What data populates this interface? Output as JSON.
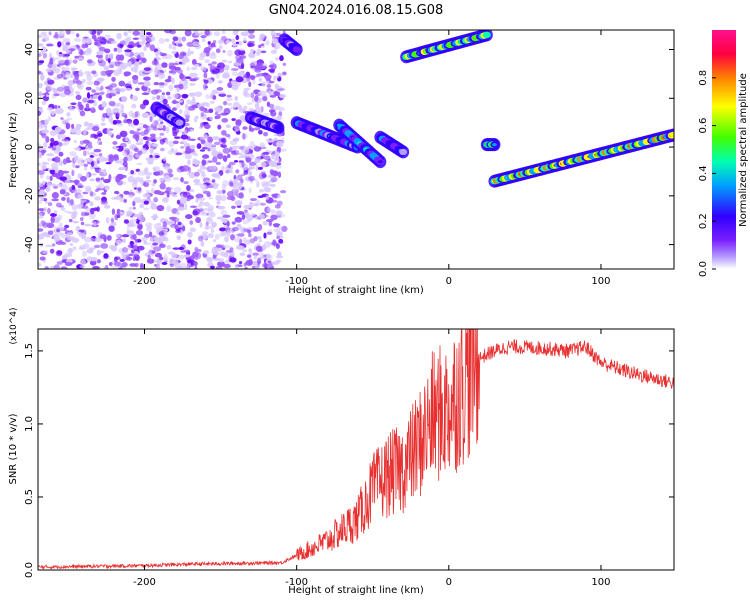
{
  "title": "GN04.2024.016.08.15.G08",
  "colors": {
    "snr_line": "#e83030",
    "axes": "#000000",
    "colormap": [
      "#ffffff",
      "#b49cff",
      "#7a1fff",
      "#3000ff",
      "#00a0ff",
      "#00ffb0",
      "#40ff00",
      "#ffff00",
      "#ff8000",
      "#ff0040",
      "#ff1090"
    ]
  },
  "chart_data": [
    {
      "type": "heatmap",
      "xlabel": "Height of straight line (km)",
      "ylabel": "Frequency (Hz)",
      "xlim": [
        -270,
        148
      ],
      "ylim": [
        -50,
        48
      ],
      "xticks": [
        -200,
        -100,
        0,
        100
      ],
      "xtick_labels": [
        "-200",
        "-100",
        "0",
        "100"
      ],
      "yticks": [
        40,
        20,
        0,
        -20,
        -40
      ],
      "ytick_labels": [
        "40",
        "20",
        "0",
        "-20",
        "-40"
      ],
      "colorbar": {
        "label": "Normalized spectral amplitude",
        "range": [
          0,
          1
        ],
        "ticks": [
          0.0,
          0.2,
          0.4,
          0.6,
          0.8
        ],
        "tick_labels": [
          "0.0",
          "0.2",
          "0.4",
          "0.6",
          "0.8"
        ]
      },
      "noise_region_x": [
        -270,
        -108
      ],
      "tracks": [
        {
          "x": [
            -192,
            -177
          ],
          "y": [
            16,
            10
          ],
          "amp": 0.35
        },
        {
          "x": [
            -130,
            -112
          ],
          "y": [
            12,
            8
          ],
          "amp": 0.35
        },
        {
          "x": [
            -108,
            -100
          ],
          "y": [
            44,
            40
          ],
          "amp": 0.4
        },
        {
          "x": [
            -100,
            -60
          ],
          "y": [
            10,
            0
          ],
          "amp": 0.45
        },
        {
          "x": [
            -72,
            -45
          ],
          "y": [
            9,
            -6
          ],
          "amp": 0.55
        },
        {
          "x": [
            -45,
            -30
          ],
          "y": [
            4,
            -2
          ],
          "amp": 0.45
        },
        {
          "x": [
            -28,
            25
          ],
          "y": [
            37,
            46
          ],
          "amp": 0.85
        },
        {
          "x": [
            25,
            30
          ],
          "y": [
            1,
            1
          ],
          "amp": 0.75
        },
        {
          "x": [
            30,
            148
          ],
          "y": [
            -14,
            5
          ],
          "amp": 0.95
        }
      ]
    },
    {
      "type": "line",
      "xlabel": "Height of straight line (km)",
      "ylabel": "SNR (10 * v/v)",
      "y_multiplier": "(x10^4)",
      "xlim": [
        -270,
        148
      ],
      "ylim": [
        0,
        16500
      ],
      "xticks": [
        -200,
        -100,
        0,
        100
      ],
      "xtick_labels": [
        "-200",
        "-100",
        "0",
        "100"
      ],
      "yticks": [
        0,
        5000,
        10000,
        15000
      ],
      "ytick_labels": [
        "0.0",
        "0.5",
        "1.0",
        "1.5"
      ],
      "series": [
        {
          "x": [
            -270,
            -200,
            -170,
            -110,
            -100,
            -80,
            -60,
            -50,
            -40,
            -30,
            -20,
            -10,
            0,
            10,
            20,
            30,
            40,
            60,
            80,
            90,
            100,
            120,
            148
          ],
          "values": [
            200,
            300,
            400,
            500,
            1000,
            2000,
            3500,
            5500,
            6500,
            7000,
            8500,
            10500,
            11000,
            13000,
            14500,
            15000,
            15300,
            15200,
            15000,
            15300,
            14200,
            13500,
            12800
          ]
        }
      ]
    }
  ]
}
